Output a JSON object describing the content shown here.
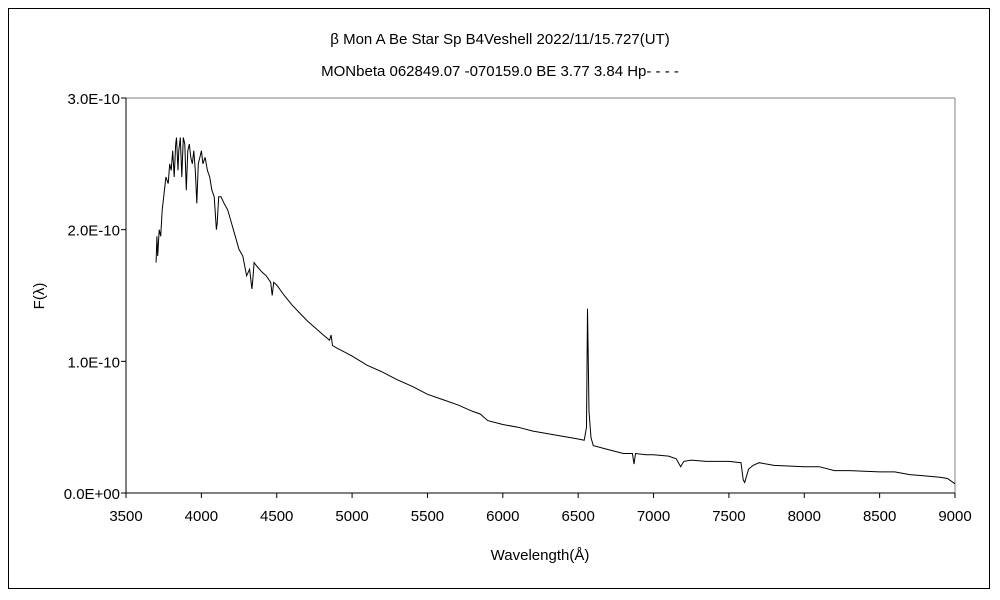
{
  "chart_data": {
    "type": "line",
    "title": "β Mon A   Be Star   Sp B4Veshell   2022/11/15.727(UT)",
    "subtitle": "MONbeta 062849.07 -070159.0 BE 3.77 3.84 Hp- - - -",
    "xlabel": "Wavelength(Å)",
    "ylabel": "F(λ)",
    "xlim": [
      3500,
      9000
    ],
    "ylim": [
      0,
      3e-10
    ],
    "xticks": [
      "3500",
      "4000",
      "4500",
      "5000",
      "5500",
      "6000",
      "6500",
      "7000",
      "7500",
      "8000",
      "8500",
      "9000"
    ],
    "yticks": [
      "0.0E+00",
      "1.0E-10",
      "2.0E-10",
      "3.0E-10"
    ],
    "grid": false,
    "series": [
      {
        "name": "spectrum",
        "unit_scale": 1e-10,
        "x": [
          3700,
          3705,
          3710,
          3720,
          3730,
          3740,
          3750,
          3765,
          3780,
          3790,
          3800,
          3810,
          3820,
          3830,
          3835,
          3845,
          3850,
          3860,
          3870,
          3880,
          3890,
          3900,
          3910,
          3920,
          3930,
          3940,
          3950,
          3960,
          3970,
          3980,
          3990,
          4000,
          4010,
          4025,
          4040,
          4055,
          4070,
          4085,
          4100,
          4105,
          4115,
          4130,
          4150,
          4175,
          4200,
          4225,
          4250,
          4275,
          4300,
          4320,
          4335,
          4340,
          4350,
          4370,
          4400,
          4430,
          4460,
          4470,
          4480,
          4500,
          4550,
          4600,
          4650,
          4700,
          4750,
          4800,
          4850,
          4861,
          4870,
          4900,
          4950,
          5000,
          5100,
          5200,
          5300,
          5400,
          5500,
          5600,
          5700,
          5800,
          5850,
          5900,
          6000,
          6100,
          6200,
          6300,
          6400,
          6500,
          6540,
          6555,
          6562,
          6566,
          6572,
          6585,
          6600,
          6700,
          6800,
          6860,
          6870,
          6880,
          6950,
          7000,
          7100,
          7150,
          7180,
          7200,
          7250,
          7350,
          7500,
          7580,
          7595,
          7605,
          7630,
          7660,
          7700,
          7800,
          8000,
          8100,
          8200,
          8300,
          8500,
          8600,
          8700,
          8800,
          8900,
          8950,
          9000
        ],
        "y": [
          1.75,
          1.95,
          1.8,
          2.0,
          1.95,
          2.15,
          2.25,
          2.4,
          2.35,
          2.5,
          2.45,
          2.6,
          2.4,
          2.65,
          2.7,
          2.45,
          2.6,
          2.7,
          2.4,
          2.7,
          2.65,
          2.3,
          2.6,
          2.65,
          2.55,
          2.5,
          2.6,
          2.45,
          2.2,
          2.5,
          2.55,
          2.6,
          2.5,
          2.55,
          2.45,
          2.4,
          2.3,
          2.25,
          2.0,
          2.05,
          2.25,
          2.25,
          2.2,
          2.15,
          2.05,
          1.95,
          1.85,
          1.8,
          1.65,
          1.7,
          1.55,
          1.6,
          1.75,
          1.72,
          1.68,
          1.65,
          1.6,
          1.5,
          1.6,
          1.58,
          1.5,
          1.43,
          1.37,
          1.31,
          1.26,
          1.21,
          1.16,
          1.2,
          1.12,
          1.1,
          1.07,
          1.04,
          0.97,
          0.92,
          0.86,
          0.81,
          0.75,
          0.71,
          0.67,
          0.62,
          0.6,
          0.55,
          0.52,
          0.5,
          0.47,
          0.45,
          0.43,
          0.41,
          0.4,
          0.5,
          1.4,
          1.1,
          0.62,
          0.42,
          0.36,
          0.33,
          0.3,
          0.3,
          0.22,
          0.3,
          0.29,
          0.29,
          0.28,
          0.26,
          0.2,
          0.24,
          0.25,
          0.24,
          0.24,
          0.23,
          0.1,
          0.08,
          0.18,
          0.21,
          0.23,
          0.21,
          0.2,
          0.2,
          0.17,
          0.17,
          0.16,
          0.16,
          0.14,
          0.13,
          0.12,
          0.11,
          0.07
        ]
      }
    ]
  }
}
